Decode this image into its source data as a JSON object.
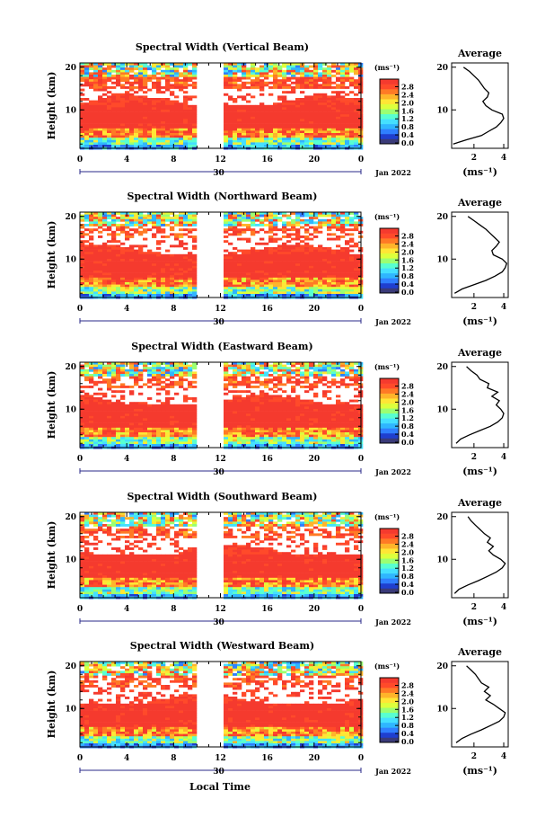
{
  "figure": {
    "xlabel": "Local Time",
    "date_label": "Jan 2022",
    "date_day": "30",
    "ylabel": "Height (km)",
    "unit_label": "(ms⁻¹)",
    "average_title": "Average",
    "average_unit": "(ms⁻¹)"
  },
  "chart_data": [
    {
      "type": "heatmap",
      "title": "Spectral Width (Vertical Beam)",
      "x_ticks": [
        "0",
        "4",
        "8",
        "12",
        "16",
        "20",
        "0"
      ],
      "xlim": [
        0,
        24
      ],
      "y_ticks": [
        "20",
        "10"
      ],
      "ylim": [
        1,
        21
      ],
      "colorbar_ticks": [
        "2.8",
        "2.4",
        "2.0",
        "1.6",
        "1.2",
        "0.8",
        "0.4",
        "0.0"
      ],
      "colorbar_range": [
        0,
        3.0
      ],
      "data_gap_hours": [
        10.2,
        12.0
      ],
      "average_profile": {
        "x_ticks": [
          "2",
          "4"
        ],
        "xlim": [
          0.5,
          4.3
        ],
        "y_ticks": [
          "20",
          "10"
        ],
        "height_km": [
          2,
          3,
          4,
          5,
          6,
          7,
          8,
          9,
          10,
          11,
          12,
          13,
          14,
          15,
          16,
          17,
          18,
          19,
          20
        ],
        "width": [
          0.6,
          1.5,
          2.5,
          3.0,
          3.5,
          3.8,
          4.0,
          3.9,
          3.2,
          2.8,
          2.6,
          2.9,
          3.0,
          2.7,
          2.5,
          2.3,
          2.0,
          1.7,
          1.3
        ]
      }
    },
    {
      "type": "heatmap",
      "title": "Spectral Width (Northward Beam)",
      "x_ticks": [
        "0",
        "4",
        "8",
        "12",
        "16",
        "20",
        "0"
      ],
      "xlim": [
        0,
        24
      ],
      "y_ticks": [
        "20",
        "10"
      ],
      "ylim": [
        1,
        21
      ],
      "colorbar_ticks": [
        "2.8",
        "2.4",
        "2.0",
        "1.6",
        "1.2",
        "0.8",
        "0.4",
        "0.0"
      ],
      "colorbar_range": [
        0,
        3.0
      ],
      "data_gap_hours": [
        10.2,
        12.0
      ],
      "average_profile": {
        "x_ticks": [
          "2",
          "4"
        ],
        "xlim": [
          0.5,
          4.3
        ],
        "y_ticks": [
          "20",
          "10"
        ],
        "height_km": [
          2,
          3,
          4,
          5,
          6,
          7,
          8,
          9,
          10,
          11,
          12,
          13,
          14,
          15,
          16,
          17,
          18,
          19,
          20
        ],
        "width": [
          0.7,
          1.2,
          2.0,
          2.8,
          3.4,
          3.9,
          4.1,
          4.2,
          3.9,
          3.3,
          3.2,
          3.5,
          3.7,
          3.4,
          3.1,
          2.8,
          2.4,
          2.0,
          1.6
        ]
      }
    },
    {
      "type": "heatmap",
      "title": "Spectral Width (Eastward Beam)",
      "x_ticks": [
        "0",
        "4",
        "8",
        "12",
        "16",
        "20",
        "0"
      ],
      "xlim": [
        0,
        24
      ],
      "y_ticks": [
        "20",
        "10"
      ],
      "ylim": [
        1,
        21
      ],
      "colorbar_ticks": [
        "2.8",
        "2.4",
        "2.0",
        "1.6",
        "1.2",
        "0.8",
        "0.4",
        "0.0"
      ],
      "colorbar_range": [
        0,
        3.0
      ],
      "data_gap_hours": [
        10.2,
        12.0
      ],
      "average_profile": {
        "x_ticks": [
          "2",
          "4"
        ],
        "xlim": [
          0.5,
          4.3
        ],
        "y_ticks": [
          "20",
          "10"
        ],
        "height_km": [
          2,
          3,
          4,
          5,
          6,
          7,
          8,
          9,
          10,
          11,
          12,
          13,
          14,
          15,
          16,
          17,
          18,
          19,
          20
        ],
        "width": [
          0.8,
          1.1,
          1.7,
          2.4,
          3.1,
          3.6,
          3.9,
          4.0,
          3.8,
          3.5,
          3.7,
          3.2,
          3.6,
          2.9,
          3.0,
          2.4,
          2.2,
          1.8,
          1.5
        ]
      }
    },
    {
      "type": "heatmap",
      "title": "Spectral Width (Southward Beam)",
      "x_ticks": [
        "0",
        "4",
        "8",
        "12",
        "16",
        "20",
        "0"
      ],
      "xlim": [
        0,
        24
      ],
      "y_ticks": [
        "20",
        "10"
      ],
      "ylim": [
        1,
        21
      ],
      "colorbar_ticks": [
        "2.8",
        "2.4",
        "2.0",
        "1.6",
        "1.2",
        "0.8",
        "0.4",
        "0.0"
      ],
      "colorbar_range": [
        0,
        3.0
      ],
      "data_gap_hours": [
        10.2,
        12.0
      ],
      "average_profile": {
        "x_ticks": [
          "2",
          "4"
        ],
        "xlim": [
          0.5,
          4.3
        ],
        "y_ticks": [
          "20",
          "10"
        ],
        "height_km": [
          2,
          3,
          4,
          5,
          6,
          7,
          8,
          9,
          10,
          11,
          12,
          13,
          14,
          15,
          16,
          17,
          18,
          19,
          20
        ],
        "width": [
          0.7,
          1.0,
          1.6,
          2.3,
          2.9,
          3.5,
          3.9,
          4.1,
          3.8,
          3.3,
          3.0,
          3.3,
          2.9,
          3.1,
          2.7,
          2.4,
          2.1,
          1.8,
          1.6
        ]
      }
    },
    {
      "type": "heatmap",
      "title": "Spectral Width (Westward Beam)",
      "x_ticks": [
        "0",
        "4",
        "8",
        "12",
        "16",
        "20",
        "0"
      ],
      "xlim": [
        0,
        24
      ],
      "y_ticks": [
        "20",
        "10"
      ],
      "ylim": [
        1,
        21
      ],
      "colorbar_ticks": [
        "2.8",
        "2.4",
        "2.0",
        "1.6",
        "1.2",
        "0.8",
        "0.4",
        "0.0"
      ],
      "colorbar_range": [
        0,
        3.0
      ],
      "data_gap_hours": [
        10.2,
        12.0
      ],
      "average_profile": {
        "x_ticks": [
          "2",
          "4"
        ],
        "xlim": [
          0.5,
          4.3
        ],
        "y_ticks": [
          "20",
          "10"
        ],
        "height_km": [
          2,
          3,
          4,
          5,
          6,
          7,
          8,
          9,
          10,
          11,
          12,
          13,
          14,
          15,
          16,
          17,
          18,
          19,
          20
        ],
        "width": [
          0.8,
          1.2,
          1.8,
          2.5,
          3.1,
          3.7,
          4.0,
          4.1,
          3.7,
          3.3,
          2.8,
          3.1,
          2.7,
          3.0,
          2.5,
          2.3,
          2.1,
          1.8,
          1.5
        ]
      }
    }
  ],
  "colors": {
    "no_data": "#ffffff",
    "colormap": [
      "#3a3a78",
      "#1f3fcf",
      "#2f7fff",
      "#2fb6ff",
      "#45e0ff",
      "#58ffd1",
      "#9bff72",
      "#ddff3c",
      "#ffe635",
      "#ffb42a",
      "#ff7a25",
      "#ff4a2a",
      "#f53a2e"
    ]
  }
}
